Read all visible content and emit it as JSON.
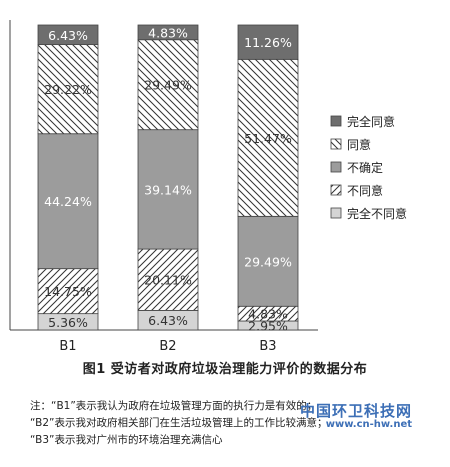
{
  "chart_data": {
    "type": "bar",
    "stacked": true,
    "categories": [
      "B1",
      "B2",
      "B3"
    ],
    "ylim": [
      0,
      100
    ],
    "legend_position": "right",
    "grid": false,
    "series": [
      {
        "name": "完全不同意",
        "pattern": "lightgray",
        "values": [
          5.36,
          6.43,
          2.95
        ],
        "labels": [
          "5.36%",
          "6.43%",
          "2.95%"
        ]
      },
      {
        "name": "不同意",
        "pattern": "hatch-fwd",
        "values": [
          14.75,
          20.11,
          4.83
        ],
        "labels": [
          "14.75%",
          "20.11%",
          "4.83%"
        ]
      },
      {
        "name": "不确定",
        "pattern": "gray",
        "values": [
          44.24,
          39.14,
          29.49
        ],
        "labels": [
          "44.24%",
          "39.14%",
          "29.49%"
        ]
      },
      {
        "name": "同意",
        "pattern": "hatch-back",
        "values": [
          29.22,
          29.49,
          51.47
        ],
        "labels": [
          "29.22%",
          "29.49%",
          "51.47%"
        ]
      },
      {
        "name": "完全同意",
        "pattern": "darkgray",
        "values": [
          6.43,
          4.83,
          11.26
        ],
        "labels": [
          "6.43%",
          "4.83%",
          "11.26%"
        ]
      }
    ],
    "legend_order": [
      "完全同意",
      "同意",
      "不确定",
      "不同意",
      "完全不同意"
    ]
  },
  "caption": "图1  受访者对政府垃圾治理能力评价的数据分布",
  "notes": [
    "注：“B1”表示我认为政府在垃圾管理方面的执行力是有效的；",
    "“B2”表示我对政府相关部门在生活垃圾管理上的工作比较满意；",
    "“B3”表示我对广州市的环境治理充满信心"
  ],
  "watermark": {
    "title": "中国环卫科技网",
    "url": "www.cn-hw.net"
  }
}
